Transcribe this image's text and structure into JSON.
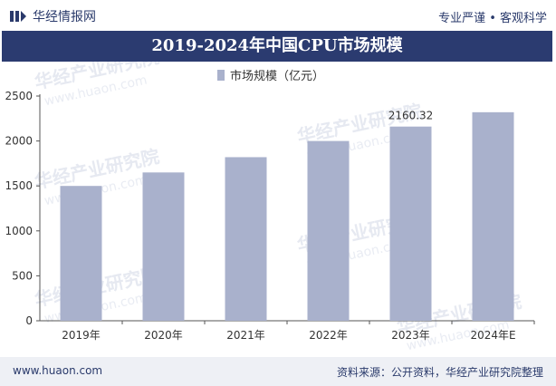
{
  "header": {
    "logo_text": "华经情报网",
    "slogan": "专业严谨 • 客观科学"
  },
  "title": "2019-2024年中国CPU市场规模",
  "footer": {
    "url": "www.huaon.com",
    "source": "资料来源：公开资料，华经产业研究院整理"
  },
  "watermark": {
    "cn": "华经产业研究院",
    "en": "www.huaon.com"
  },
  "colors": {
    "bar": "#a9b1cc",
    "title_bg": "#2b3b70",
    "brand": "#2a3a6b"
  },
  "chart_data": {
    "type": "bar",
    "categories": [
      "2019年",
      "2020年",
      "2021年",
      "2022年",
      "2023年",
      "2024年E"
    ],
    "series": [
      {
        "name": "市场规模（亿元）",
        "values": [
          1500,
          1650,
          1820,
          2000,
          2160.32,
          2320
        ]
      }
    ],
    "data_labels": [
      {
        "category": "2023年",
        "text": "2160.32"
      }
    ],
    "title": "2019-2024年中国CPU市场规模",
    "xlabel": "",
    "ylabel": "",
    "ylim": [
      0,
      2500
    ],
    "yticks": [
      0,
      500,
      1000,
      1500,
      2000,
      2500
    ],
    "legend_position": "top-center",
    "grid": false
  }
}
